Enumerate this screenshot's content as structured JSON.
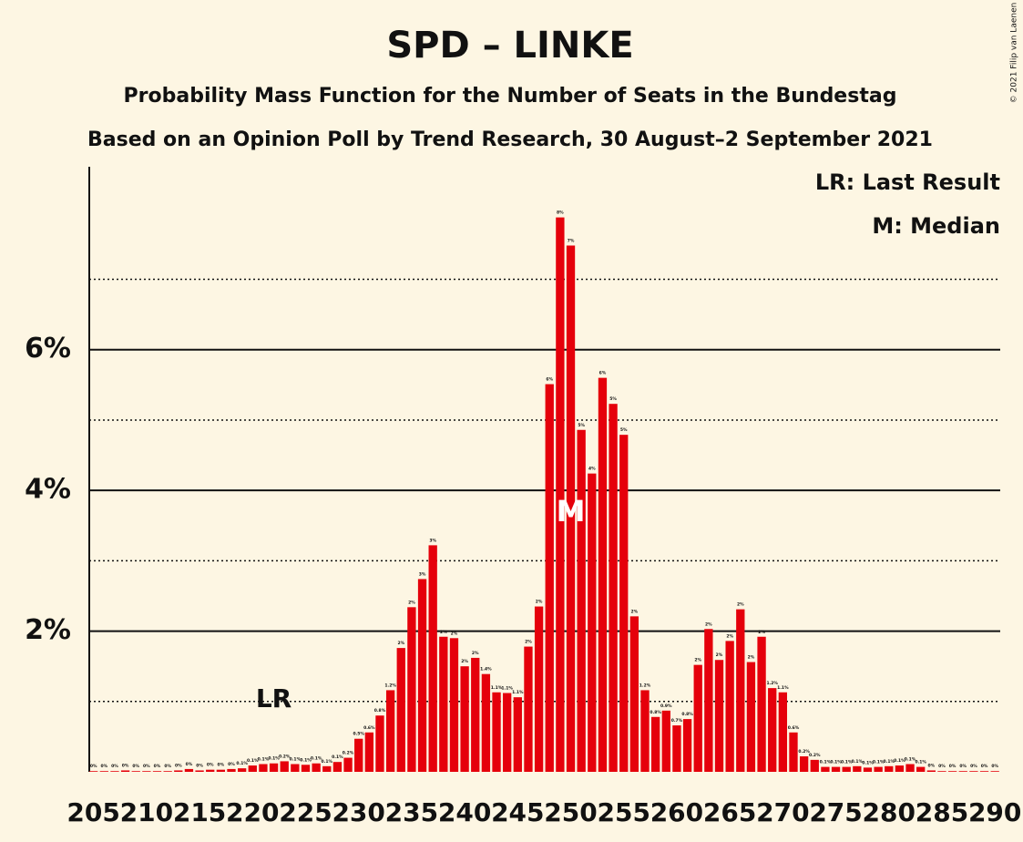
{
  "chart_data": {
    "type": "bar",
    "title": "SPD – LINKE",
    "subtitle": "Probability Mass Function for the Number of Seats in the Bundestag",
    "subtitle2": "Based on an Opinion Poll by Trend Research, 30 August–2 September 2021",
    "credit": "© 2021 Filip van Laenen",
    "legend": [
      "LR: Last Result",
      "M: Median"
    ],
    "annotations": [
      {
        "x": 222,
        "label": "LR"
      },
      {
        "x": 250,
        "label": "M"
      }
    ],
    "color": "#e5000b",
    "x": [
      205,
      206,
      207,
      208,
      209,
      210,
      211,
      212,
      213,
      214,
      215,
      216,
      217,
      218,
      219,
      220,
      221,
      222,
      223,
      224,
      225,
      226,
      227,
      228,
      229,
      230,
      231,
      232,
      233,
      234,
      235,
      236,
      237,
      238,
      239,
      240,
      241,
      242,
      243,
      244,
      245,
      246,
      247,
      248,
      249,
      250,
      251,
      252,
      253,
      254,
      255,
      256,
      257,
      258,
      259,
      260,
      261,
      262,
      263,
      264,
      265,
      266,
      267,
      268,
      269,
      270,
      271,
      272,
      273,
      274,
      275,
      276,
      277,
      278,
      279,
      280,
      281,
      282,
      283,
      284,
      285,
      286,
      287,
      288,
      289,
      290
    ],
    "values": [
      0.01,
      0.01,
      0.01,
      0.02,
      0.01,
      0.01,
      0.01,
      0.01,
      0.02,
      0.04,
      0.02,
      0.03,
      0.03,
      0.04,
      0.05,
      0.09,
      0.11,
      0.12,
      0.15,
      0.11,
      0.1,
      0.12,
      0.08,
      0.14,
      0.2,
      0.47,
      0.56,
      0.8,
      1.16,
      1.76,
      2.34,
      2.74,
      3.22,
      1.92,
      1.9,
      1.5,
      1.62,
      1.39,
      1.13,
      1.12,
      1.06,
      1.78,
      2.35,
      5.51,
      7.88,
      7.48,
      4.86,
      4.24,
      5.6,
      5.23,
      4.79,
      2.21,
      1.16,
      0.78,
      0.87,
      0.66,
      0.75,
      1.52,
      2.03,
      1.59,
      1.86,
      2.31,
      1.56,
      1.92,
      1.19,
      1.13,
      0.56,
      0.22,
      0.17,
      0.07,
      0.07,
      0.07,
      0.08,
      0.06,
      0.07,
      0.08,
      0.09,
      0.11,
      0.07,
      0.02,
      0.01,
      0.01,
      0.01,
      0.01,
      0.01,
      0.01
    ],
    "value_labels": [
      "0%",
      "0%",
      "0%",
      "0%",
      "0%",
      "0%",
      "0%",
      "0%",
      "0%",
      "0%",
      "0%",
      "0%",
      "0%",
      "0%",
      "0.1%",
      "0.1%",
      "0.1%",
      "0.1%",
      "0.2%",
      "0.1%",
      "0.1%",
      "0.1%",
      "0.1%",
      "0.1%",
      "0.2%",
      "0.5%",
      "0.6%",
      "0.8%",
      "1.2%",
      "2%",
      "2%",
      "3%",
      "3%",
      "2%",
      "2%",
      "2%",
      "2%",
      "1.4%",
      "1.1%",
      "1.1%",
      "1.1%",
      "2%",
      "2%",
      "6%",
      "8%",
      "7%",
      "5%",
      "4%",
      "6%",
      "5%",
      "5%",
      "2%",
      "1.2%",
      "0.8%",
      "0.9%",
      "0.7%",
      "0.8%",
      "2%",
      "2%",
      "2%",
      "2%",
      "2%",
      "2%",
      "2%",
      "1.2%",
      "1.1%",
      "0.6%",
      "0.2%",
      "0.2%",
      "0.1%",
      "0.1%",
      "0.1%",
      "0.1%",
      "0.1%",
      "0.1%",
      "0.1%",
      "0.1%",
      "0.1%",
      "0.1%",
      "0%",
      "0%",
      "0%",
      "0%",
      "0%",
      "0%",
      "0%"
    ],
    "xlim": [
      204.6,
      290.5
    ],
    "xticks": [
      205,
      210,
      215,
      220,
      225,
      230,
      235,
      240,
      245,
      250,
      255,
      260,
      265,
      270,
      275,
      280,
      285,
      290
    ],
    "ylim": [
      0,
      8.6
    ],
    "yticks": [
      {
        "value": 2,
        "label": "2%"
      },
      {
        "value": 4,
        "label": "4%"
      },
      {
        "value": 6,
        "label": "6%"
      }
    ],
    "minor_yticks": [
      1,
      3,
      5,
      7
    ],
    "grid": true
  }
}
